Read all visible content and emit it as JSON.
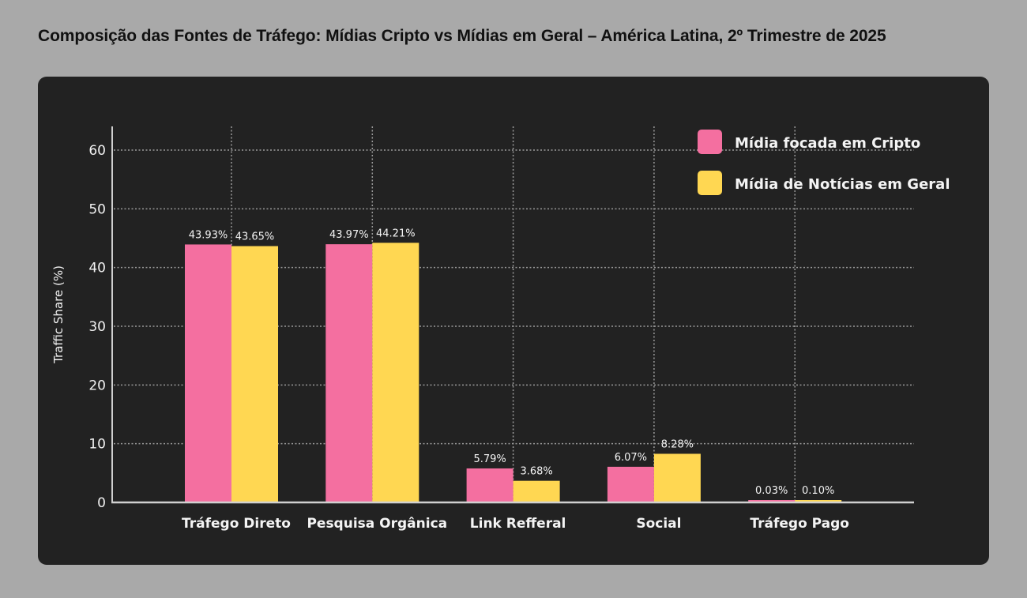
{
  "chart_data": {
    "type": "bar",
    "title": "Composição das Fontes de Tráfego: Mídias Cripto vs Mídias em Geral – América Latina, 2º Trimestre de 2025",
    "xlabel": "",
    "ylabel": "Traffic Share (%)",
    "ylim": [
      0,
      64
    ],
    "yticks": [
      0,
      10,
      20,
      30,
      40,
      50,
      60
    ],
    "grid": true,
    "legend_position": "top-right",
    "categories": [
      "Tráfego Direto",
      "Pesquisa Orgânica",
      "Link Refferal",
      "Social",
      "Tráfego Pago"
    ],
    "series": [
      {
        "name": "Mídia focada em Cripto",
        "color": "#f46fa0",
        "values": [
          43.93,
          43.97,
          5.79,
          6.07,
          0.03
        ],
        "labels": [
          "43.93%",
          "43.97%",
          "5.79%",
          "6.07%",
          "0.03%"
        ]
      },
      {
        "name": "Mídia de Notícias em Geral",
        "color": "#ffd752",
        "values": [
          43.65,
          44.21,
          3.68,
          8.28,
          0.1
        ],
        "labels": [
          "43.65%",
          "44.21%",
          "3.68%",
          "8.28%",
          "0.10%"
        ]
      }
    ]
  }
}
